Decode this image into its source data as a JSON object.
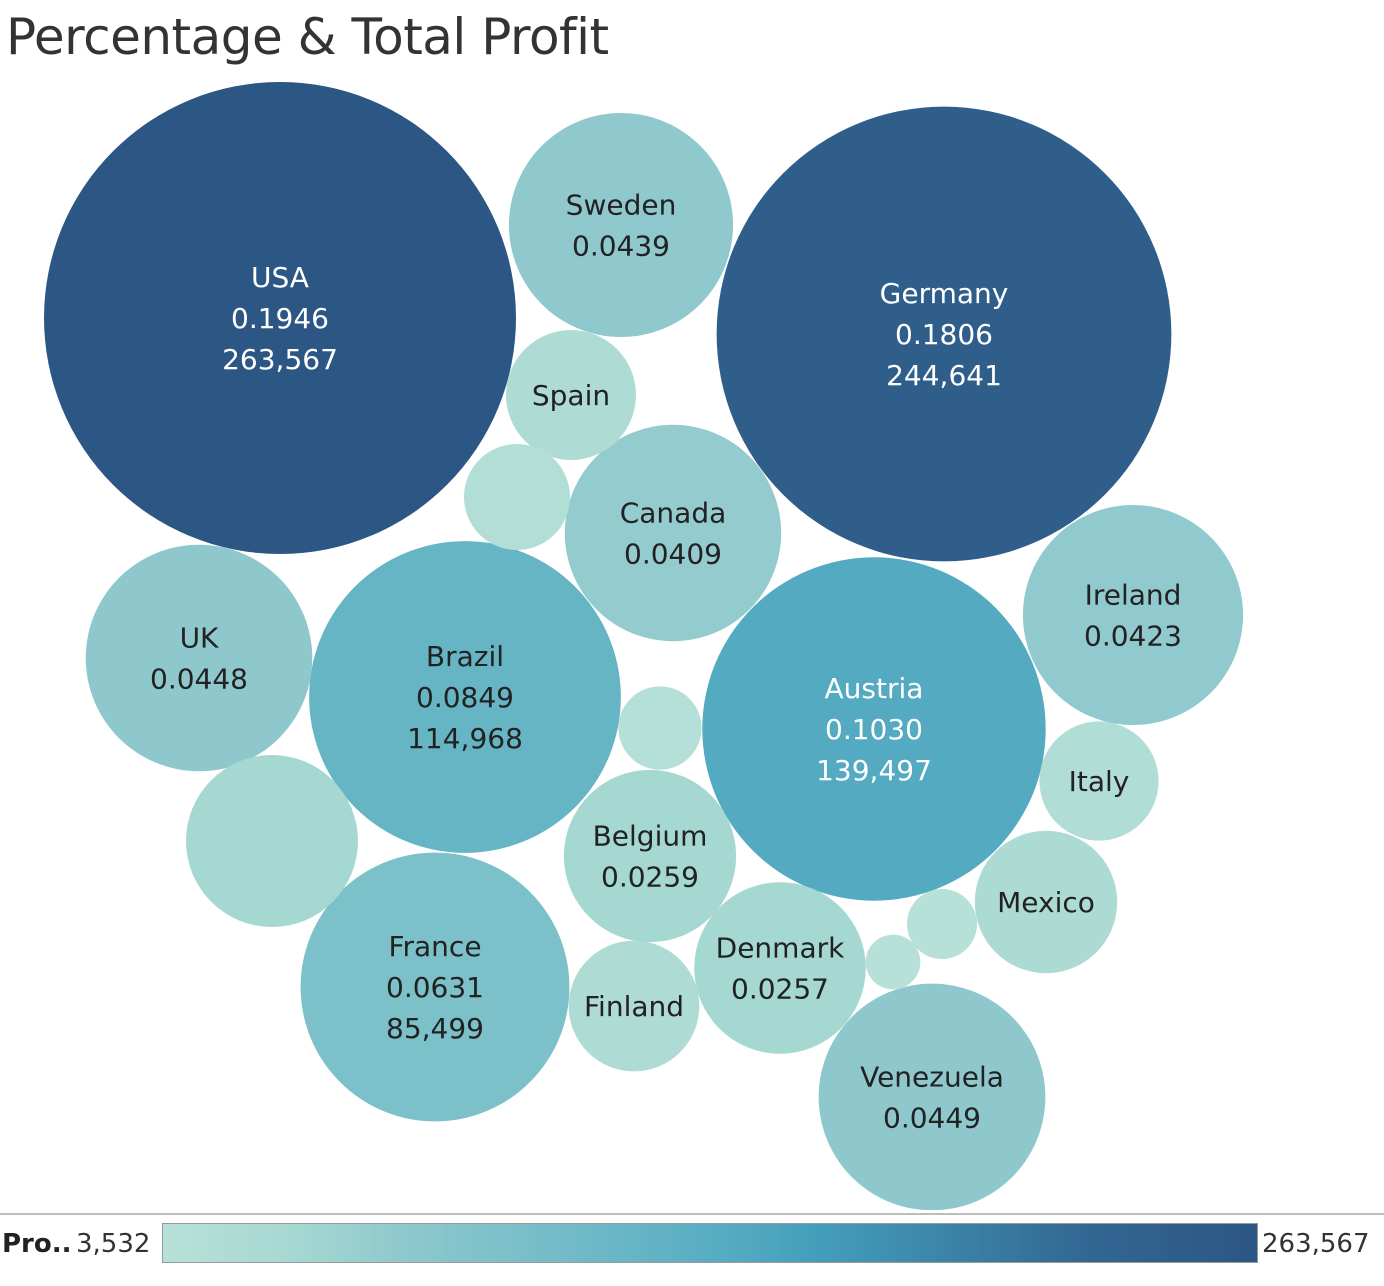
{
  "chart_data": {
    "type": "packed-bubble",
    "title": "Percentage & Total Profit",
    "size_measure": "Profit",
    "color_measure": "Profit",
    "legend": {
      "label": "Pro..",
      "min_label": "3,532",
      "max_label": "263,567",
      "min": 3532,
      "max": 263567,
      "color_low": "#b7e0d8",
      "color_high": "#2c5684"
    },
    "points": [
      {
        "id": "usa",
        "label": "USA",
        "pct": "0.1946",
        "profit_label": "263,567",
        "profit": 263567
      },
      {
        "id": "germany",
        "label": "Germany",
        "pct": "0.1806",
        "profit_label": "244,641",
        "profit": 244641
      },
      {
        "id": "austria",
        "label": "Austria",
        "pct": "0.1030",
        "profit_label": "139,497",
        "profit": 139497
      },
      {
        "id": "brazil",
        "label": "Brazil",
        "pct": "0.0849",
        "profit_label": "114,968",
        "profit": 114968
      },
      {
        "id": "france",
        "label": "France",
        "pct": "0.0631",
        "profit_label": "85,499",
        "profit": 85499
      },
      {
        "id": "venezuela",
        "label": "Venezuela",
        "pct": "0.0449",
        "profit": 60800
      },
      {
        "id": "uk",
        "label": "UK",
        "pct": "0.0448",
        "profit": 60700
      },
      {
        "id": "sweden",
        "label": "Sweden",
        "pct": "0.0439",
        "profit": 59400
      },
      {
        "id": "ireland",
        "label": "Ireland",
        "pct": "0.0423",
        "profit": 57300
      },
      {
        "id": "canada",
        "label": "Canada",
        "pct": "0.0409",
        "profit": 55400
      },
      {
        "id": "belgium",
        "label": "Belgium",
        "pct": "0.0259",
        "profit": 35100
      },
      {
        "id": "denmark",
        "label": "Denmark",
        "pct": "0.0257",
        "profit": 34800
      },
      {
        "id": "unlabeled-1",
        "label": "",
        "pct": "",
        "profit": 35000
      },
      {
        "id": "mexico",
        "label": "Mexico",
        "profit": 24000
      },
      {
        "id": "finland",
        "label": "Finland",
        "profit": 20200
      },
      {
        "id": "spain",
        "label": "Spain",
        "profit": 20000
      },
      {
        "id": "italy",
        "label": "Italy",
        "profit": 16800
      },
      {
        "id": "unlabeled-2",
        "label": "",
        "profit": 13300
      },
      {
        "id": "unlabeled-3",
        "label": "",
        "profit": 8200
      },
      {
        "id": "unlabeled-4",
        "label": "",
        "profit": 5800
      },
      {
        "id": "unlabeled-5",
        "label": "",
        "profit": 3532
      }
    ]
  }
}
